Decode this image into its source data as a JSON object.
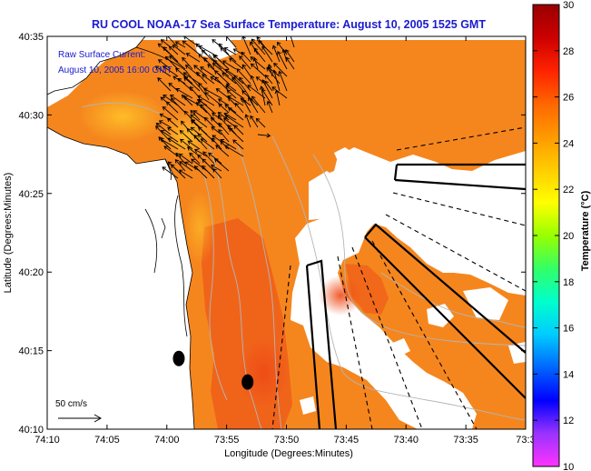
{
  "chart_data": {
    "type": "heatmap",
    "title": "RU COOL  NOAA-17  Sea Surface Temperature:  August 10, 2005 1525 GMT",
    "xlabel": "Longitude (Degrees:Minutes)",
    "ylabel": "Latitude (Degrees:Minutes)",
    "x_ticks": [
      {
        "value": -74.1667,
        "label": "74:10"
      },
      {
        "value": -74.0833,
        "label": "74:05"
      },
      {
        "value": -74.0,
        "label": "74:00"
      },
      {
        "value": -73.9167,
        "label": "73:55"
      },
      {
        "value": -73.8333,
        "label": "73:50"
      },
      {
        "value": -73.75,
        "label": "73:45"
      },
      {
        "value": -73.6667,
        "label": "73:40"
      },
      {
        "value": -73.5833,
        "label": "73:35"
      },
      {
        "value": -73.5,
        "label": "73:3"
      }
    ],
    "y_ticks": [
      {
        "value": 40.5833,
        "label": "40:35"
      },
      {
        "value": 40.5,
        "label": "40:30"
      },
      {
        "value": 40.4167,
        "label": "40:25"
      },
      {
        "value": 40.3333,
        "label": "40:20"
      },
      {
        "value": 40.25,
        "label": "40:15"
      },
      {
        "value": 40.1667,
        "label": "40:10"
      }
    ],
    "xlim": [
      -74.1667,
      -73.5
    ],
    "ylim": [
      40.1667,
      40.5833
    ],
    "colorbar": {
      "label": "Temperature (°C)",
      "min": 10,
      "max": 30,
      "ticks": [
        10,
        12,
        14,
        16,
        18,
        20,
        22,
        24,
        26,
        28,
        30
      ],
      "colors": [
        "#ff33ff",
        "#9933ff",
        "#0000ff",
        "#0066ff",
        "#00ccff",
        "#00ffcc",
        "#33ff66",
        "#99ff00",
        "#ffff00",
        "#ffcc00",
        "#ff9900",
        "#ff6600",
        "#ff2200",
        "#cc0000",
        "#990000"
      ]
    },
    "legend_text": [
      "Raw Surface Current:",
      "August 10, 2005 16:00 GMT"
    ],
    "scale_label": "50 cm/s",
    "stations": [
      {
        "lon": -73.9833,
        "lat": 40.2417
      },
      {
        "lon": -73.8875,
        "lat": 40.2167
      }
    ],
    "ocean_sst_c": 26,
    "warm_core_sst_c": 27.5,
    "nearshore_sst_c": 24
  }
}
